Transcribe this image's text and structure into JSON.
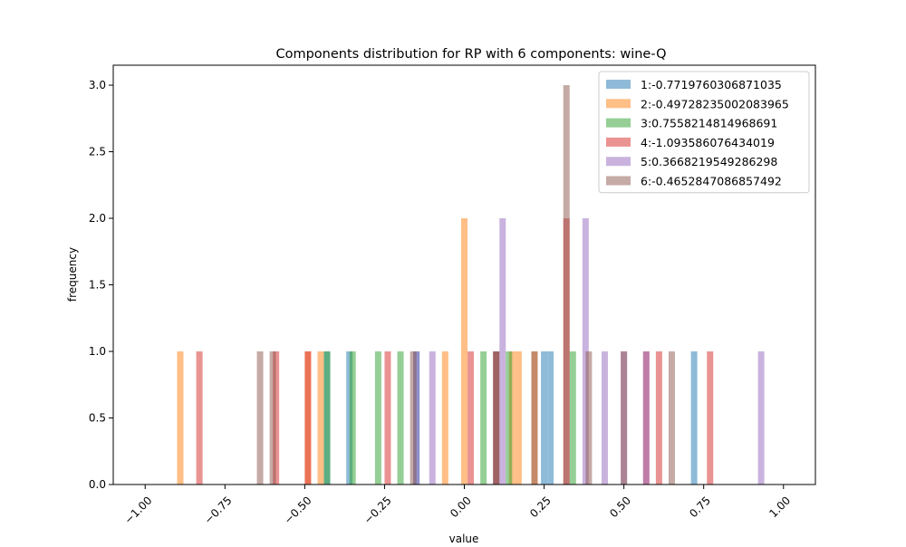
{
  "chart_data": {
    "type": "bar",
    "title": "Components distribution for RP with 6 components: wine-Q",
    "xlabel": "value",
    "ylabel": "frequency",
    "xlim": [
      -1.1,
      1.1
    ],
    "ylim": [
      0.0,
      3.15
    ],
    "x_ticks": [
      -1.0,
      -0.75,
      -0.5,
      -0.25,
      0.0,
      0.25,
      0.5,
      0.75,
      1.0
    ],
    "x_tick_labels": [
      "−1.00",
      "−0.75",
      "−0.50",
      "−0.25",
      "0.00",
      "0.25",
      "0.50",
      "0.75",
      "1.00"
    ],
    "y_ticks": [
      0.0,
      0.5,
      1.0,
      1.5,
      2.0,
      2.5,
      3.0
    ],
    "y_tick_labels": [
      "0.0",
      "0.5",
      "1.0",
      "1.5",
      "2.0",
      "2.5",
      "3.0"
    ],
    "x_tick_rotation_deg": -45,
    "grid": false,
    "legend_position": "top-right",
    "bar_opacity": 0.5,
    "series": [
      {
        "name": "1:-0.7719760306871035",
        "color": "#1f77b4",
        "bars": [
          {
            "x": -0.43,
            "y": 1
          },
          {
            "x": -0.36,
            "y": 1
          },
          {
            "x": -0.15,
            "y": 1
          },
          {
            "x": 0.1,
            "y": 1
          },
          {
            "x": 0.25,
            "y": 1
          },
          {
            "x": 0.27,
            "y": 1
          },
          {
            "x": 0.72,
            "y": 1
          }
        ]
      },
      {
        "name": "2:-0.49728235002083965",
        "color": "#ff7f0e",
        "bars": [
          {
            "x": -0.89,
            "y": 1
          },
          {
            "x": -0.49,
            "y": 1
          },
          {
            "x": -0.45,
            "y": 1
          },
          {
            "x": -0.06,
            "y": 1
          },
          {
            "x": 0.0,
            "y": 2
          },
          {
            "x": 0.15,
            "y": 1
          },
          {
            "x": 0.17,
            "y": 1
          },
          {
            "x": 0.22,
            "y": 1
          }
        ]
      },
      {
        "name": "3:0.7558214814968691",
        "color": "#2ca02c",
        "bars": [
          {
            "x": -0.43,
            "y": 1
          },
          {
            "x": -0.35,
            "y": 1
          },
          {
            "x": -0.27,
            "y": 1
          },
          {
            "x": -0.2,
            "y": 1
          },
          {
            "x": 0.06,
            "y": 1
          },
          {
            "x": 0.14,
            "y": 1
          },
          {
            "x": 0.34,
            "y": 1
          }
        ]
      },
      {
        "name": "4:-1.093586076434019",
        "color": "#d62728",
        "bars": [
          {
            "x": -0.83,
            "y": 1
          },
          {
            "x": -0.59,
            "y": 1
          },
          {
            "x": -0.49,
            "y": 1
          },
          {
            "x": -0.24,
            "y": 1
          },
          {
            "x": 0.02,
            "y": 1
          },
          {
            "x": 0.1,
            "y": 1
          },
          {
            "x": 0.32,
            "y": 2
          },
          {
            "x": 0.57,
            "y": 1
          },
          {
            "x": 0.61,
            "y": 1
          },
          {
            "x": 0.77,
            "y": 1
          }
        ]
      },
      {
        "name": "5:0.3668219549286298",
        "color": "#9467bd",
        "bars": [
          {
            "x": -0.15,
            "y": 1
          },
          {
            "x": -0.1,
            "y": 1
          },
          {
            "x": 0.12,
            "y": 2
          },
          {
            "x": 0.38,
            "y": 2
          },
          {
            "x": 0.44,
            "y": 1
          },
          {
            "x": 0.5,
            "y": 1
          },
          {
            "x": 0.57,
            "y": 1
          },
          {
            "x": 0.93,
            "y": 1
          }
        ]
      },
      {
        "name": "6:-0.4652847086857492",
        "color": "#8c564b",
        "bars": [
          {
            "x": -0.64,
            "y": 1
          },
          {
            "x": -0.6,
            "y": 1
          },
          {
            "x": -0.16,
            "y": 1
          },
          {
            "x": 0.1,
            "y": 1
          },
          {
            "x": 0.22,
            "y": 1
          },
          {
            "x": 0.32,
            "y": 3
          },
          {
            "x": 0.39,
            "y": 1
          },
          {
            "x": 0.5,
            "y": 1
          },
          {
            "x": 0.65,
            "y": 1
          }
        ]
      }
    ]
  }
}
